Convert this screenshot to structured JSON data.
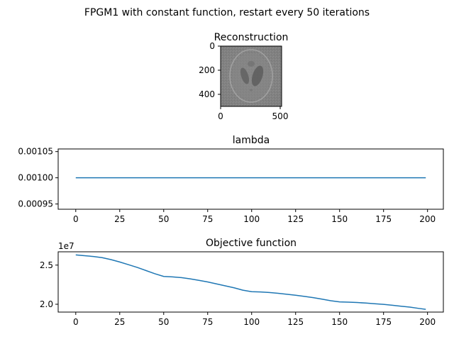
{
  "suptitle": "FPGM1 with constant function, restart every 50 iterations",
  "colors": {
    "line": "#1f77b4",
    "axis": "#000000"
  },
  "chart_data": [
    {
      "type": "heatmap",
      "title": "Reconstruction",
      "xticks": [
        "0",
        "500"
      ],
      "yticks": [
        "0",
        "200",
        "400"
      ],
      "colormap": "gray",
      "content": "Gray phantom reconstruction image"
    },
    {
      "type": "line",
      "title": "lambda",
      "xlim": [
        -10,
        209
      ],
      "ylim": [
        0.00094,
        0.001055
      ],
      "xticks": [
        "0",
        "25",
        "50",
        "75",
        "100",
        "125",
        "150",
        "175",
        "200"
      ],
      "yticks": [
        "0.00095",
        "0.00100",
        "0.00105"
      ],
      "series": [
        {
          "x": [
            0,
            199
          ],
          "y": [
            0.001,
            0.001
          ]
        }
      ]
    },
    {
      "type": "line",
      "title": "Objective function",
      "offset_label": "1e7",
      "xlim": [
        -10,
        209
      ],
      "ylim": [
        1.9,
        2.67
      ],
      "xticks": [
        "0",
        "25",
        "50",
        "75",
        "100",
        "125",
        "150",
        "175",
        "200"
      ],
      "yticks": [
        "2.0",
        "2.5"
      ],
      "series": [
        {
          "x": [
            0,
            5,
            10,
            15,
            20,
            25,
            30,
            35,
            40,
            45,
            50,
            55,
            60,
            65,
            70,
            75,
            80,
            85,
            90,
            95,
            100,
            105,
            110,
            115,
            120,
            125,
            130,
            135,
            140,
            145,
            150,
            155,
            160,
            165,
            170,
            175,
            180,
            185,
            190,
            195,
            199
          ],
          "y": [
            2.63,
            2.62,
            2.61,
            2.595,
            2.57,
            2.54,
            2.505,
            2.47,
            2.43,
            2.39,
            2.355,
            2.35,
            2.34,
            2.325,
            2.305,
            2.285,
            2.26,
            2.235,
            2.21,
            2.18,
            2.16,
            2.157,
            2.15,
            2.14,
            2.128,
            2.115,
            2.1,
            2.085,
            2.065,
            2.045,
            2.03,
            2.027,
            2.022,
            2.015,
            2.007,
            1.998,
            1.987,
            1.975,
            1.963,
            1.947,
            1.935
          ]
        }
      ]
    }
  ]
}
